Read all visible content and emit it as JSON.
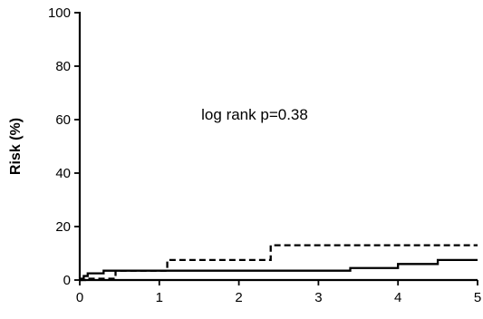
{
  "chart_data": {
    "type": "line",
    "title": "",
    "xlabel": "",
    "ylabel": "Risk (%)",
    "xlim": [
      0,
      5
    ],
    "ylim": [
      0,
      100
    ],
    "x_ticks": [
      0,
      1,
      2,
      3,
      4,
      5
    ],
    "y_ticks": [
      0,
      20,
      40,
      60,
      80,
      100
    ],
    "grid": false,
    "legend": "none",
    "annotation": "log rank p=0.38",
    "series": [
      {
        "style": "solid",
        "color": "#000000",
        "x": [
          0,
          0.02,
          0.05,
          0.1,
          0.3,
          0.8,
          3.4,
          4.0,
          4.5,
          5.0
        ],
        "y": [
          0,
          0.5,
          1.5,
          2.5,
          3.5,
          3.5,
          4.5,
          6.0,
          7.5,
          7.5
        ]
      },
      {
        "style": "dashed",
        "color": "#000000",
        "x": [
          0,
          0.1,
          0.45,
          1.1,
          2.4,
          5.0
        ],
        "y": [
          0,
          0.5,
          3.5,
          7.5,
          13.0,
          13.0
        ]
      }
    ]
  }
}
